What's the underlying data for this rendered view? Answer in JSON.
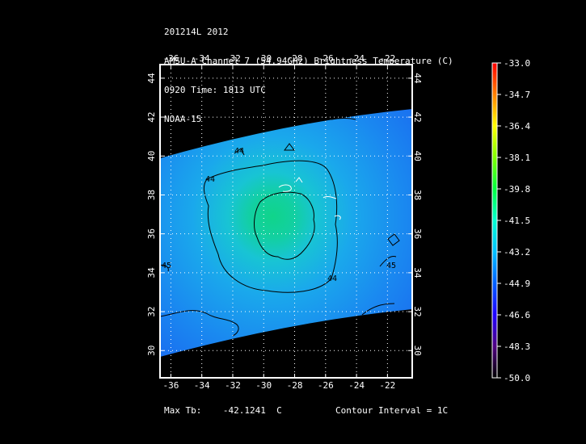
{
  "header": {
    "line1": "201214L 2012",
    "line2": "AMSU-A Channel 7 (54.94GHz) Brightness Temperature (C)",
    "line3": "0920 Time: 1813 UTC",
    "line4": "NOAA-15"
  },
  "map": {
    "lon_ticks": [
      "-36",
      "-34",
      "-32",
      "-30",
      "-28",
      "-26",
      "-24",
      "-22"
    ],
    "lat_ticks": [
      "30",
      "32",
      "34",
      "36",
      "38",
      "40",
      "42",
      "44"
    ],
    "contour_labels": [
      "44",
      "44",
      "44",
      "45",
      "45"
    ],
    "lon_range": [
      -36.7,
      -20.4
    ],
    "lat_range": [
      28.6,
      44.7
    ]
  },
  "colorbar": {
    "ticks": [
      "-33.0",
      "-34.7",
      "-36.4",
      "-38.1",
      "-39.8",
      "-41.5",
      "-43.2",
      "-44.9",
      "-46.6",
      "-48.3",
      "-50.0"
    ],
    "colors": [
      "#ff0000",
      "#ff8000",
      "#ffff00",
      "#00ff00",
      "#00ffff",
      "#0080ff",
      "#0000ff",
      "#8000ff",
      "#400060",
      "#000000"
    ]
  },
  "footer": {
    "max_label": "Max Tb:",
    "max_value": "-42.1241",
    "max_unit": "C",
    "contour_text": "Contour Interval = 1C"
  }
}
